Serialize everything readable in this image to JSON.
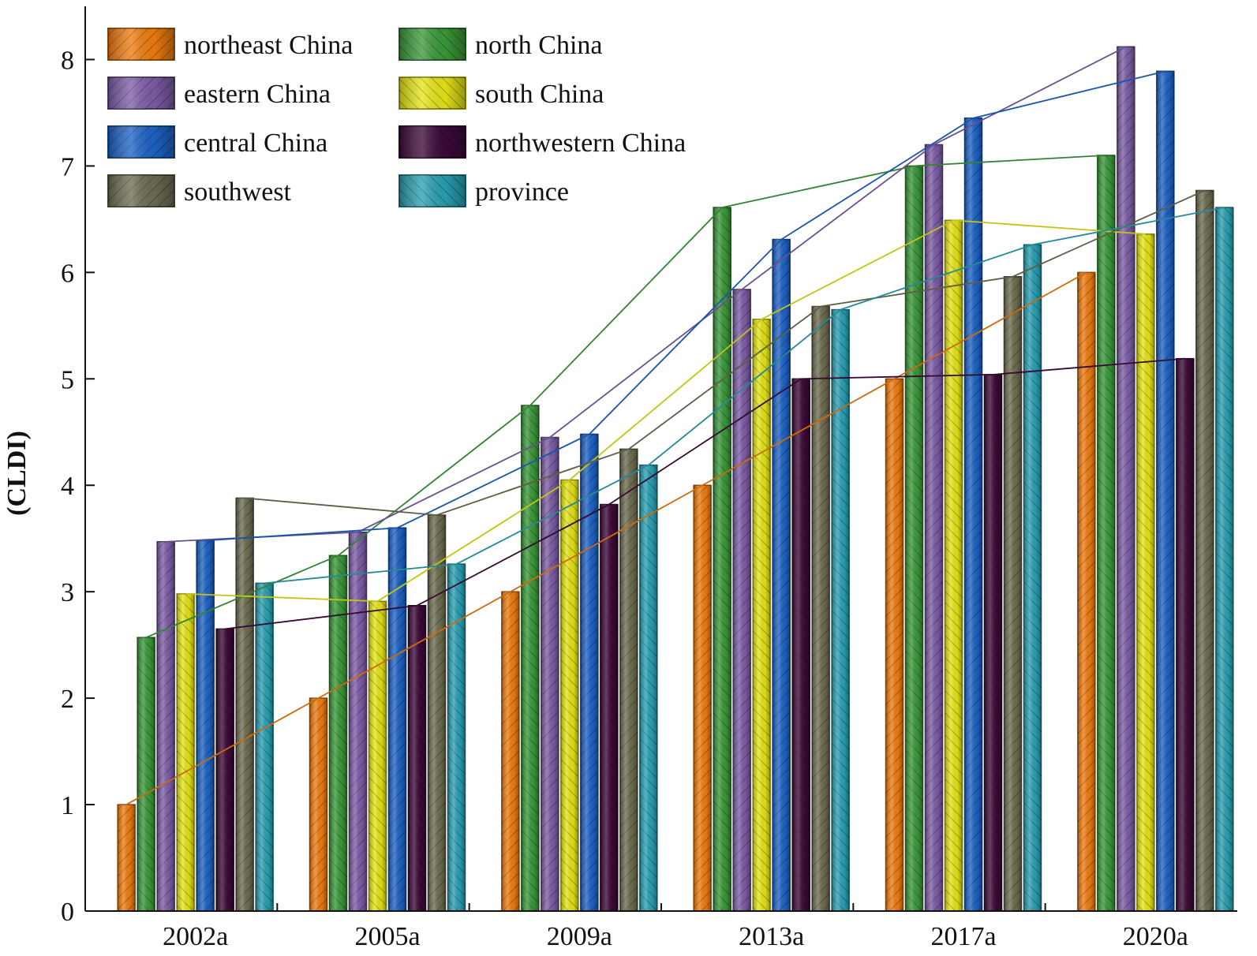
{
  "chart_data": {
    "type": "bar",
    "title": "",
    "xlabel": "",
    "ylabel": "(CLDI)",
    "ylim": [
      0,
      8.5
    ],
    "yticks": [
      0,
      1,
      2,
      3,
      4,
      5,
      6,
      7,
      8
    ],
    "grid": false,
    "legend_position": "top-left",
    "categories": [
      "2002a",
      "2005a",
      "2009a",
      "2013a",
      "2017a",
      "2020a"
    ],
    "series": [
      {
        "name": "northeast China",
        "color": "#F07D10",
        "values": [
          1.0,
          2.0,
          3.0,
          4.0,
          5.0,
          6.0
        ]
      },
      {
        "name": "north China",
        "color": "#3B9A3A",
        "values": [
          2.57,
          3.34,
          4.75,
          6.61,
          7.0,
          7.1
        ]
      },
      {
        "name": "eastern China",
        "color": "#7E5EA8",
        "values": [
          3.47,
          3.56,
          4.45,
          5.84,
          7.2,
          8.12
        ]
      },
      {
        "name": "south China",
        "color": "#E6E617",
        "values": [
          2.98,
          2.91,
          4.05,
          5.56,
          6.49,
          6.36
        ]
      },
      {
        "name": "central China",
        "color": "#1E64C8",
        "values": [
          3.48,
          3.6,
          4.48,
          6.31,
          7.45,
          7.89
        ]
      },
      {
        "name": "northwestern China",
        "color": "#3E0A3A",
        "values": [
          2.65,
          2.87,
          3.82,
          5.0,
          5.04,
          5.19
        ]
      },
      {
        "name": "southwest",
        "color": "#6F6E52",
        "values": [
          3.88,
          3.72,
          4.34,
          5.68,
          5.96,
          6.77
        ]
      },
      {
        "name": "province",
        "color": "#2AA1B4",
        "values": [
          3.08,
          3.26,
          4.19,
          5.65,
          6.26,
          6.61
        ]
      }
    ],
    "legend_labels": [
      "northeast China",
      "north China",
      "eastern China",
      "south China",
      "central China",
      "northwestern China",
      "southwest",
      "province"
    ]
  }
}
